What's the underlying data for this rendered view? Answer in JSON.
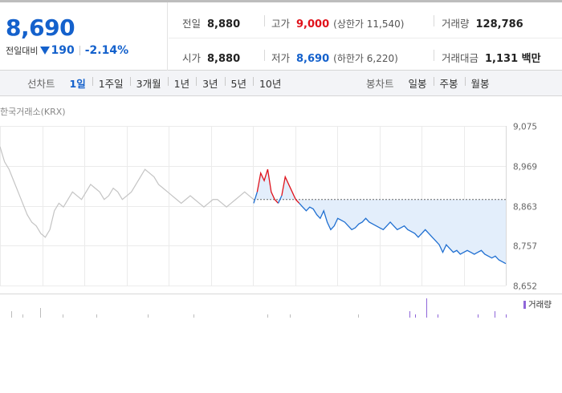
{
  "quote": {
    "price": "8,690",
    "change_label": "전일대비",
    "change_amount": "190",
    "change_pct": "-2.14%",
    "direction": "down",
    "stats": {
      "prev_close": {
        "label": "전일",
        "value": "8,880"
      },
      "open": {
        "label": "시가",
        "value": "8,880"
      },
      "high": {
        "label": "고가",
        "value": "9,000",
        "sub": "(상한가 11,540)"
      },
      "low": {
        "label": "저가",
        "value": "8,690",
        "sub": "(하한가 6,220)"
      },
      "volume": {
        "label": "거래량",
        "value": "128,786"
      },
      "trade_value": {
        "label": "거래대금",
        "value": "1,131 백만"
      }
    }
  },
  "period": {
    "line_label": "선차트",
    "line_options": [
      "1일",
      "1주일",
      "3개월",
      "1년",
      "3년",
      "5년",
      "10년"
    ],
    "line_active": "1일",
    "candle_label": "봉차트",
    "candle_options": [
      "일봉",
      "주봉",
      "월봉"
    ]
  },
  "chart": {
    "source": "한국거래소(KRX)",
    "volume_legend": "거래량",
    "colors": {
      "prev_day": "#c4c4c4",
      "up": "#e0121b",
      "down": "#1f6fd1",
      "fill": "#e3eefb",
      "volume": "#8f66d9"
    }
  },
  "chart_data": {
    "type": "line",
    "y_ticks": [
      "9,075",
      "8,969",
      "8,863",
      "8,757",
      "8,652"
    ],
    "ylim": [
      8652,
      9075
    ],
    "reference_price": 8880,
    "grid": true,
    "series": [
      {
        "values": [
          9020,
          8980,
          8960,
          8930,
          8900,
          8870,
          8840,
          8820,
          8810,
          8790,
          8780,
          8800,
          8850,
          8870,
          8860,
          8880,
          8900,
          8890,
          8880,
          8900,
          8920,
          8910,
          8900,
          8880,
          8890,
          8910,
          8900,
          8880,
          8890,
          8900,
          8920,
          8940,
          8960,
          8950,
          8940,
          8920,
          8910,
          8900,
          8890,
          8880,
          8870,
          8880,
          8890,
          8880,
          8870,
          8860,
          8870,
          8880,
          8880,
          8870,
          8860,
          8870,
          8880,
          8890,
          8900,
          8890,
          8880
        ]
      },
      {
        "values": [
          8870,
          8900,
          8950,
          8930,
          8960,
          8900,
          8880,
          8870,
          8890,
          8940,
          8920,
          8900,
          8880,
          8870,
          8860,
          8850,
          8860,
          8855,
          8840,
          8830,
          8850,
          8820,
          8800,
          8810,
          8830,
          8825,
          8820,
          8810,
          8800,
          8805,
          8815,
          8820,
          8830,
          8820,
          8815,
          8810,
          8805,
          8800,
          8810,
          8820,
          8810,
          8800,
          8805,
          8810,
          8800,
          8795,
          8790,
          8780,
          8790,
          8800,
          8790,
          8780,
          8770,
          8760,
          8740,
          8760,
          8750,
          8740,
          8745,
          8735,
          8740,
          8745,
          8740,
          8735,
          8740,
          8745,
          8735,
          8730,
          8725,
          8730,
          8720,
          8715,
          8710
        ]
      }
    ],
    "volume_values": [
      0,
      0,
      2,
      0,
      1,
      0,
      0,
      3,
      0,
      0,
      0,
      1,
      0,
      0,
      0,
      0,
      0,
      1,
      0,
      0,
      0,
      0,
      0,
      0,
      0,
      0,
      1,
      0,
      0,
      0,
      0,
      0,
      0,
      0,
      1,
      0,
      0,
      0,
      0,
      0,
      0,
      0,
      0,
      0,
      0,
      0,
      0,
      1,
      0,
      0,
      0,
      1,
      0,
      0,
      0,
      0,
      0,
      0,
      0,
      0,
      0,
      0,
      0,
      1,
      0,
      0,
      0,
      0,
      0,
      0,
      0,
      0,
      2,
      1,
      0,
      6,
      0,
      1,
      0,
      0,
      0,
      0,
      0,
      0,
      1,
      0,
      0,
      2,
      0,
      1
    ]
  }
}
